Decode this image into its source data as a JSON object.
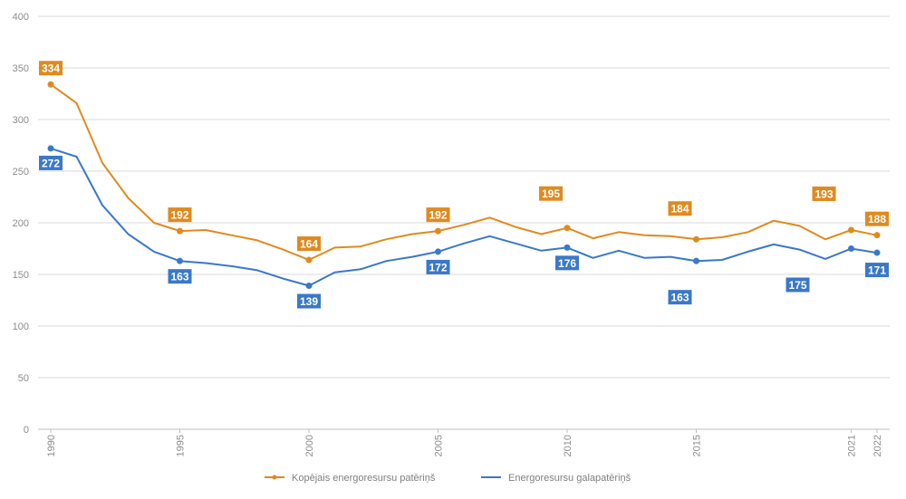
{
  "chart_data": {
    "type": "line",
    "ylim": [
      0,
      400
    ],
    "yticks": [
      0,
      50,
      100,
      150,
      200,
      250,
      300,
      350,
      400
    ],
    "x": [
      1990,
      1991,
      1992,
      1993,
      1994,
      1995,
      1996,
      1997,
      1998,
      1999,
      2000,
      2001,
      2002,
      2003,
      2004,
      2005,
      2006,
      2007,
      2008,
      2009,
      2010,
      2011,
      2012,
      2013,
      2014,
      2015,
      2016,
      2017,
      2018,
      2019,
      2020,
      2021,
      2022
    ],
    "xtick_labels": [
      "1990",
      "1995",
      "2000",
      "2005",
      "2010",
      "2015",
      "2021",
      "2022"
    ],
    "grid": true,
    "legend_position": "bottom",
    "series": [
      {
        "name": "Kopējais energoresursu patēriņš",
        "color": "#E08A1E",
        "values": [
          334,
          316,
          258,
          224,
          200,
          192,
          193,
          188,
          183,
          174,
          164,
          176,
          177,
          184,
          189,
          192,
          198,
          205,
          196,
          189,
          195,
          185,
          191,
          188,
          187,
          184,
          186,
          191,
          202,
          197,
          184,
          193,
          188
        ],
        "labeled_points": [
          {
            "x": 1990,
            "text": "334"
          },
          {
            "x": 1995,
            "text": "192"
          },
          {
            "x": 2000,
            "text": "164"
          },
          {
            "x": 2005,
            "text": "192"
          },
          {
            "x": 2010,
            "text": "195"
          },
          {
            "x": 2015,
            "text": "184"
          },
          {
            "x": 2021,
            "text": "193"
          },
          {
            "x": 2022,
            "text": "188"
          }
        ]
      },
      {
        "name": "Energoresursu galapatēriņš",
        "color": "#3A78C9",
        "values": [
          272,
          264,
          217,
          189,
          172,
          163,
          161,
          158,
          154,
          146,
          139,
          152,
          155,
          163,
          167,
          172,
          180,
          187,
          180,
          173,
          176,
          166,
          173,
          166,
          167,
          163,
          164,
          172,
          179,
          174,
          165,
          175,
          171
        ],
        "labeled_points": [
          {
            "x": 1990,
            "text": "272"
          },
          {
            "x": 1995,
            "text": "163"
          },
          {
            "x": 2000,
            "text": "139"
          },
          {
            "x": 2005,
            "text": "172"
          },
          {
            "x": 2010,
            "text": "176"
          },
          {
            "x": 2015,
            "text": "163"
          },
          {
            "x": 2021,
            "text": "175"
          },
          {
            "x": 2022,
            "text": "171"
          }
        ]
      }
    ]
  }
}
